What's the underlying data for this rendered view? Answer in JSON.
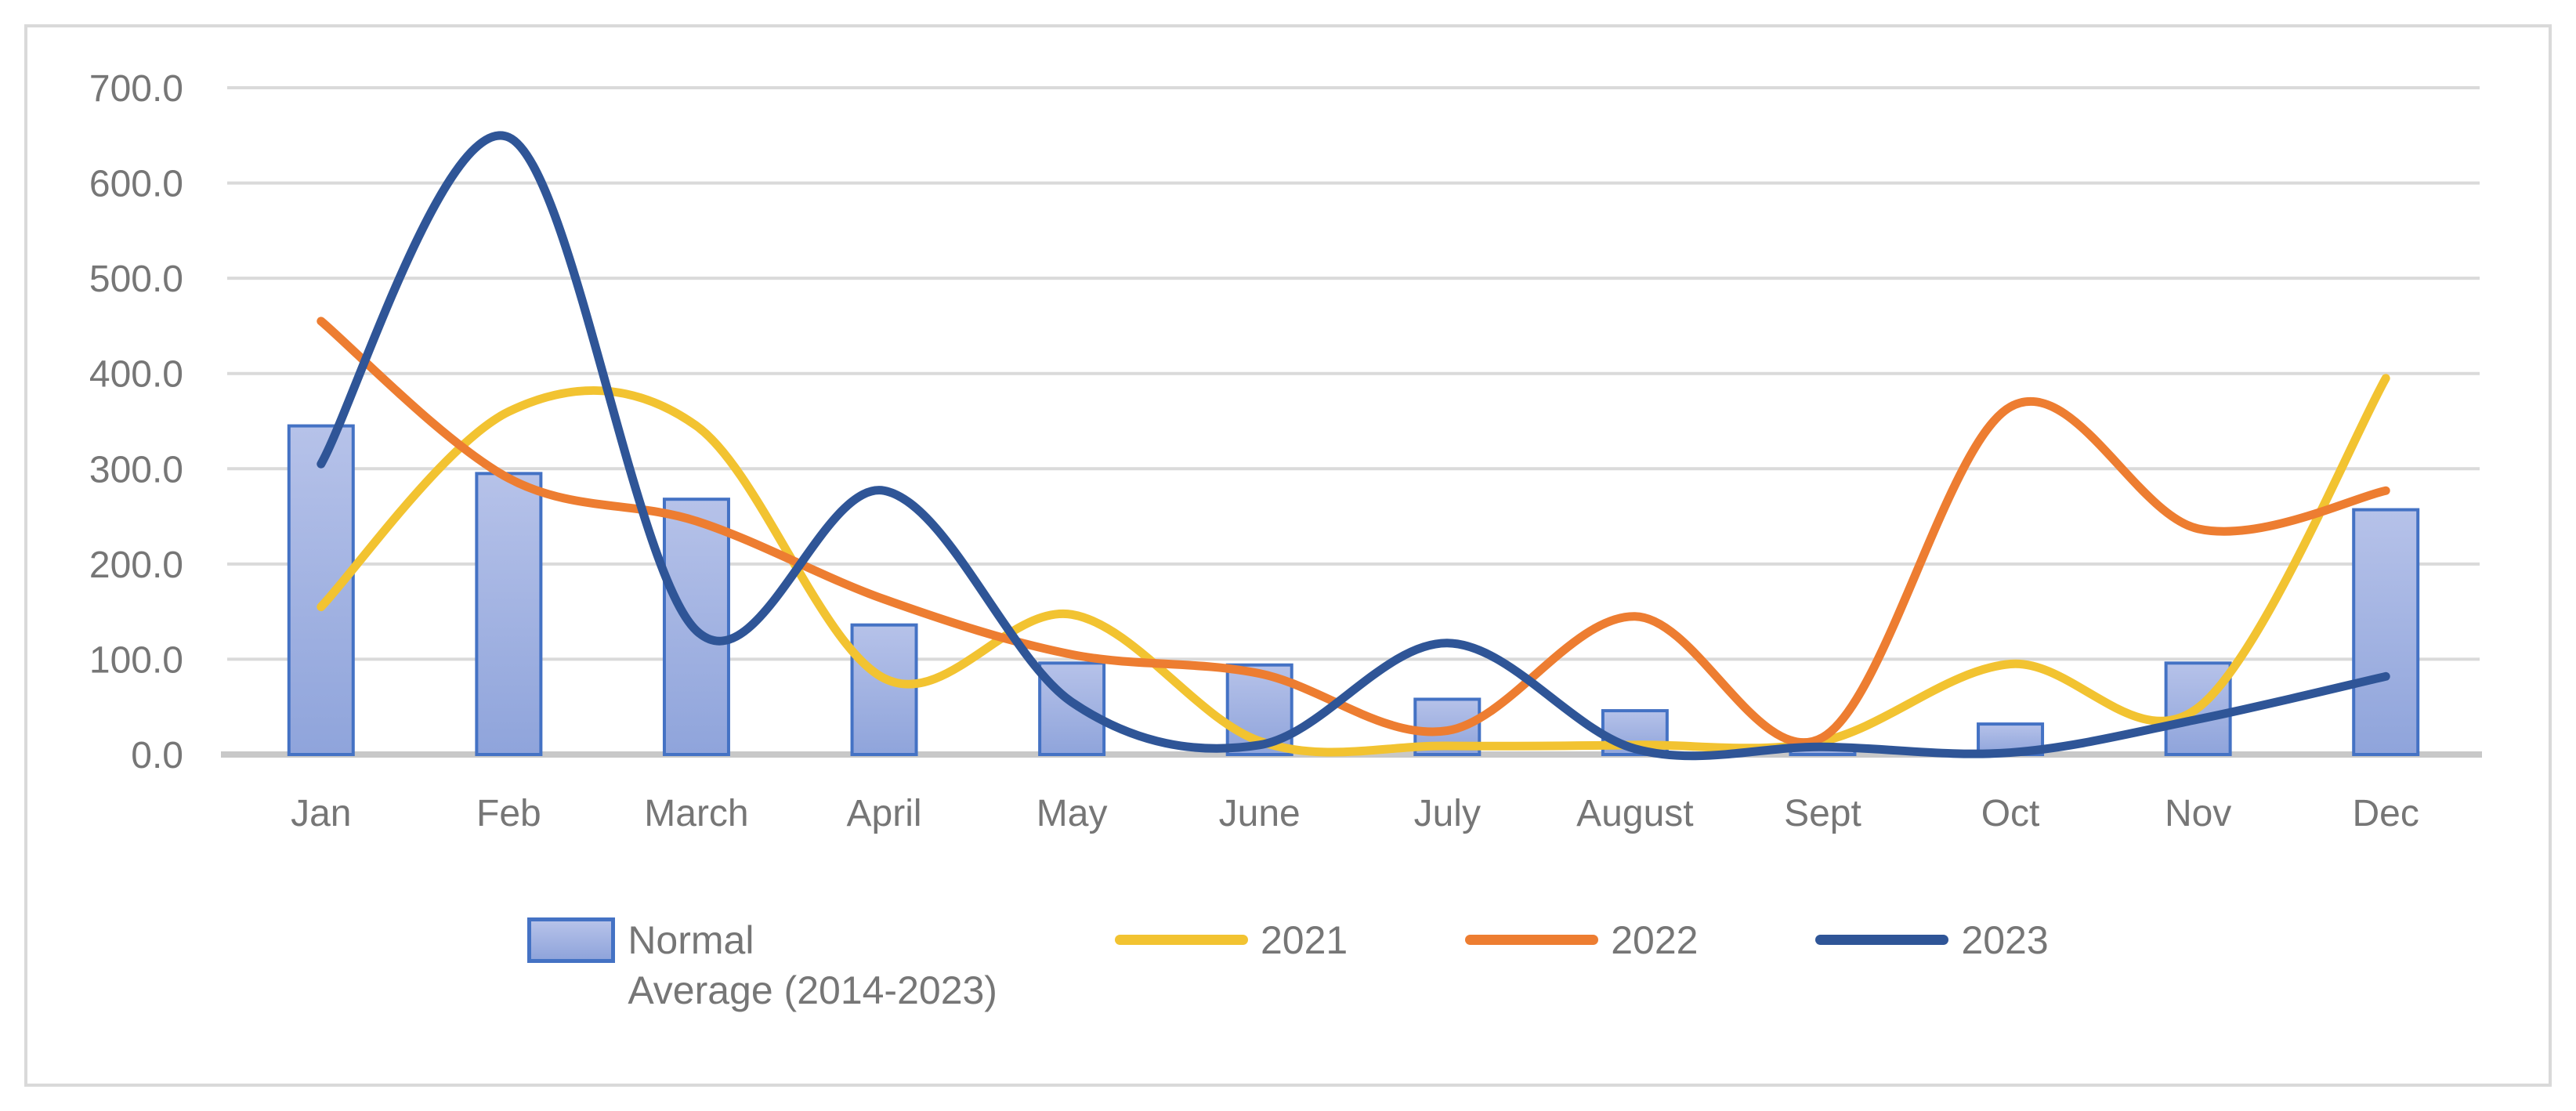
{
  "chart_data": {
    "type": "combo",
    "title": "",
    "xlabel": "",
    "ylabel": "",
    "categories": [
      "Jan",
      "Feb",
      "March",
      "April",
      "May",
      "June",
      "July",
      "August",
      "Sept",
      "Oct",
      "Nov",
      "Dec"
    ],
    "y_tick_labels": [
      "0.0",
      "100.0",
      "200.0",
      "300.0",
      "400.0",
      "500.0",
      "600.0",
      "700.0"
    ],
    "ylim": [
      0,
      700
    ],
    "ytick_step": 100,
    "grid": true,
    "legend_position": "bottom",
    "bar_series": {
      "name": "Normal\nAverage (2014-2023)",
      "values": [
        345,
        295,
        268,
        136,
        96,
        94,
        58,
        46,
        8,
        32,
        96,
        257
      ]
    },
    "line_series": [
      {
        "name": "2021",
        "color": "#F2C331",
        "values": [
          155,
          360,
          345,
          80,
          147,
          14,
          9,
          10,
          14,
          95,
          49,
          395
        ]
      },
      {
        "name": "2022",
        "color": "#ED7D31",
        "values": [
          455,
          290,
          245,
          163,
          105,
          85,
          25,
          145,
          18,
          365,
          237,
          277
        ]
      },
      {
        "name": "2023",
        "color": "#2F5597",
        "values": [
          305,
          648,
          130,
          277,
          55,
          10,
          117,
          6,
          8,
          2,
          37,
          82
        ]
      }
    ],
    "colors": {
      "bar_fill_top": "#B6C2E9",
      "bar_fill_bottom": "#8FA4DB",
      "bar_border": "#4472C4",
      "gridline": "#DADADA",
      "axis_line": "#C8C8C8",
      "frame_border": "#D9D9D9",
      "label_text": "#767676",
      "background": "#FFFFFF"
    }
  }
}
